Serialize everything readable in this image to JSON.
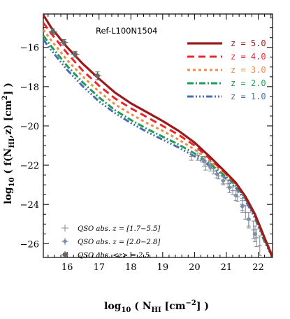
{
  "chart_data": {
    "type": "line",
    "title": "",
    "annotation": "Ref-L100N1504",
    "xlabel": {
      "pre": "log",
      "pre_sub": "10",
      "main": " ( N",
      "main_sub": "HI",
      "post": " [cm",
      "post_sup": "−2",
      "end": "] )"
    },
    "ylabel": {
      "pre": "log",
      "pre_sub": "10",
      "main": " ( f(N",
      "main_sub": "HI",
      "post": ",z) [cm",
      "post_sup": "2",
      "end": "] )"
    },
    "xlim": [
      15.25,
      22.45
    ],
    "ylim": [
      -26.7,
      -14.3
    ],
    "xticks": [
      16,
      17,
      18,
      19,
      20,
      21,
      22
    ],
    "yticks": [
      -16,
      -18,
      -20,
      -22,
      -24,
      -26
    ],
    "legend_position": "top-right",
    "series": [
      {
        "name": "z = 5.0",
        "color": "#9b1c1c",
        "dash": "",
        "width": 3.2,
        "x": [
          15.25,
          15.5,
          16,
          16.5,
          17,
          17.5,
          18,
          18.5,
          19,
          19.5,
          20,
          20.5,
          21,
          21.3,
          21.6,
          21.9,
          22.2,
          22.45
        ],
        "y": [
          -14.35,
          -15.0,
          -16.0,
          -16.85,
          -17.6,
          -18.3,
          -18.85,
          -19.3,
          -19.75,
          -20.25,
          -20.85,
          -21.6,
          -22.4,
          -22.9,
          -23.6,
          -24.5,
          -25.7,
          -26.7
        ]
      },
      {
        "name": "z = 4.0",
        "color": "#e8292b",
        "dash": "10,6",
        "width": 3,
        "x": [
          15.25,
          15.5,
          16,
          16.5,
          17,
          17.5,
          18,
          18.5,
          19,
          19.5,
          20,
          20.5,
          21,
          21.3,
          21.6,
          21.9,
          22.2,
          22.45
        ],
        "y": [
          -14.75,
          -15.3,
          -16.3,
          -17.2,
          -17.95,
          -18.6,
          -19.1,
          -19.55,
          -20.0,
          -20.45,
          -21.0,
          -21.7,
          -22.45,
          -22.95,
          -23.65,
          -24.55,
          -25.75,
          -26.7
        ]
      },
      {
        "name": "z = 3.0",
        "color": "#f08c4a",
        "dash": "4,4",
        "width": 3,
        "x": [
          15.25,
          15.5,
          16,
          16.5,
          17,
          17.5,
          18,
          18.5,
          19,
          19.5,
          20,
          20.5,
          21,
          21.3,
          21.6,
          21.9,
          22.2,
          22.45
        ],
        "y": [
          -15.1,
          -15.65,
          -16.65,
          -17.5,
          -18.25,
          -18.9,
          -19.4,
          -19.85,
          -20.25,
          -20.7,
          -21.2,
          -21.8,
          -22.5,
          -22.95,
          -23.6,
          -24.5,
          -25.7,
          -26.6
        ]
      },
      {
        "name": "z = 2.0",
        "color": "#1e9c5a",
        "dash": "9,3,2,3",
        "width": 3,
        "x": [
          15.25,
          15.5,
          16,
          16.5,
          17,
          17.5,
          18,
          18.5,
          19,
          19.5,
          20,
          20.5,
          21,
          21.3,
          21.6,
          21.9,
          22.2,
          22.45
        ],
        "y": [
          -15.4,
          -15.95,
          -16.95,
          -17.8,
          -18.55,
          -19.2,
          -19.7,
          -20.15,
          -20.55,
          -20.95,
          -21.4,
          -21.95,
          -22.6,
          -23.05,
          -23.7,
          -24.6,
          -25.8,
          -26.7
        ]
      },
      {
        "name": "z = 1.0",
        "color": "#4a6db0",
        "dash": "9,3,2,3,2,3,2,3",
        "width": 3,
        "x": [
          15.25,
          15.5,
          16,
          16.5,
          17,
          17.5,
          18,
          18.5,
          19,
          19.5,
          20,
          20.5,
          21,
          21.3,
          21.6,
          21.9,
          22.2,
          22.45
        ],
        "y": [
          -15.6,
          -16.15,
          -17.15,
          -18.0,
          -18.75,
          -19.35,
          -19.85,
          -20.3,
          -20.7,
          -21.1,
          -21.55,
          -22.05,
          -22.7,
          -23.15,
          -23.8,
          -24.7,
          -25.9,
          -26.7
        ]
      }
    ],
    "observations": [
      {
        "name": "QSO abs. z = [1.7−5.5]",
        "marker": "plus",
        "color": "#888888",
        "points": [
          {
            "x": 19.9,
            "y": -21.55,
            "err": 0.2
          },
          {
            "x": 20.1,
            "y": -21.5,
            "err": 0.25
          },
          {
            "x": 20.25,
            "y": -21.7,
            "err": 0.15
          },
          {
            "x": 20.35,
            "y": -22.05,
            "err": 0.2
          },
          {
            "x": 20.5,
            "y": -22.0,
            "err": 0.2
          },
          {
            "x": 20.6,
            "y": -22.3,
            "err": 0.15
          },
          {
            "x": 20.75,
            "y": -22.55,
            "err": 0.15
          },
          {
            "x": 20.9,
            "y": -22.75,
            "err": 0.2
          },
          {
            "x": 21.05,
            "y": -22.95,
            "err": 0.2
          },
          {
            "x": 21.2,
            "y": -23.3,
            "err": 0.2
          },
          {
            "x": 21.35,
            "y": -23.6,
            "err": 0.25
          },
          {
            "x": 21.5,
            "y": -24.0,
            "err": 0.3
          },
          {
            "x": 21.6,
            "y": -24.4,
            "err": 0.35
          },
          {
            "x": 21.7,
            "y": -24.8,
            "err": 0.4
          },
          {
            "x": 21.85,
            "y": -25.3,
            "err": 0.45
          },
          {
            "x": 21.95,
            "y": -25.7,
            "err": 0.45
          },
          {
            "x": 22.05,
            "y": -26.1,
            "err": 0.5
          }
        ]
      },
      {
        "name": "QSO abs. z = [2.0−2.8]",
        "marker": "diamond",
        "color": "#7d8fae",
        "points": [
          {
            "x": 20.3,
            "y": -21.8,
            "err": 0.25
          },
          {
            "x": 20.5,
            "y": -22.1,
            "err": 0.2
          },
          {
            "x": 20.7,
            "y": -22.45,
            "err": 0.2
          },
          {
            "x": 20.9,
            "y": -22.8,
            "err": 0.2
          },
          {
            "x": 21.1,
            "y": -23.15,
            "err": 0.25
          },
          {
            "x": 21.3,
            "y": -23.55,
            "err": 0.25
          },
          {
            "x": 21.5,
            "y": -24.1,
            "err": 0.3
          },
          {
            "x": 21.7,
            "y": -24.75,
            "err": 0.35
          },
          {
            "x": 21.9,
            "y": -25.5,
            "err": 0.4
          }
        ]
      },
      {
        "name": "QSO abs. <z> = 2.5",
        "marker": "circle",
        "color": "#666666",
        "points": [
          {
            "x": 15.55,
            "y": -15.2,
            "err": 0.15
          },
          {
            "x": 15.9,
            "y": -15.75,
            "err": 0.15
          },
          {
            "x": 16.25,
            "y": -16.35,
            "err": 0.15
          },
          {
            "x": 16.95,
            "y": -17.45,
            "err": 0.2
          }
        ]
      }
    ]
  }
}
